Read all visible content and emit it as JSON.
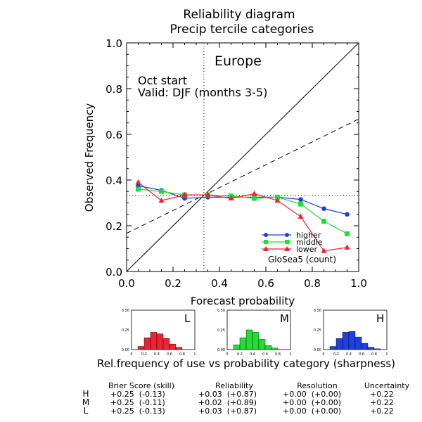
{
  "title": "Reliability diagram",
  "subtitle": "Precip tercile categories",
  "region": "Europe",
  "start_label": "Oct start",
  "valid_label": "Valid: DJF (months 3-5)",
  "model_label": "GloSea5 (count)",
  "colors": {
    "higher": "#1f3fe0",
    "middle": "#22dd33",
    "lower": "#ee2233",
    "axis": "#000000"
  },
  "chart_data": {
    "type": "line",
    "xlabel": "Forecast probability",
    "ylabel": "Observed Frequency",
    "xlim": [
      0,
      1
    ],
    "ylim": [
      0,
      1
    ],
    "xticks": [
      "0.0",
      "0.2",
      "0.4",
      "0.6",
      "0.8",
      "1.0"
    ],
    "yticks": [
      "0.0",
      "0.2",
      "0.4",
      "0.6",
      "0.8",
      "1.0"
    ],
    "climatology": 0.333,
    "no_skill_line": {
      "x": [
        0.0,
        1.0
      ],
      "y": [
        0.167,
        0.667
      ]
    },
    "x": [
      0.05,
      0.15,
      0.25,
      0.35,
      0.45,
      0.55,
      0.65,
      0.75,
      0.85,
      0.95
    ],
    "series": [
      {
        "name": "higher",
        "marker": "circle",
        "values": [
          0.375,
          0.355,
          0.32,
          0.325,
          0.325,
          0.325,
          0.325,
          0.315,
          0.275,
          0.25
        ]
      },
      {
        "name": "middle",
        "marker": "square",
        "values": [
          0.36,
          0.35,
          0.335,
          0.335,
          0.33,
          0.32,
          0.325,
          0.295,
          0.22,
          0.165
        ]
      },
      {
        "name": "lower",
        "marker": "triangle",
        "values": [
          0.39,
          0.31,
          0.335,
          0.335,
          0.32,
          0.34,
          0.31,
          0.24,
          0.09,
          0.105
        ]
      }
    ]
  },
  "sharpness": {
    "caption": "Rel.frequency of use vs probability category (sharpness)",
    "yticks": [
      "0.00",
      "0.25",
      "0.50"
    ],
    "xticks": [
      "0",
      "0.2",
      "0.4",
      "0.6",
      "0.8",
      "1"
    ],
    "panels": [
      {
        "label": "L",
        "color": "#ee2233",
        "values": [
          0.0,
          0.04,
          0.15,
          0.22,
          0.2,
          0.14,
          0.07,
          0.03,
          0.0,
          0.0
        ]
      },
      {
        "label": "M",
        "color": "#22dd33",
        "values": [
          0.0,
          0.06,
          0.15,
          0.25,
          0.22,
          0.13,
          0.05,
          0.02,
          0.0,
          0.0
        ]
      },
      {
        "label": "H",
        "color": "#1f3fe0",
        "values": [
          0.0,
          0.04,
          0.14,
          0.22,
          0.23,
          0.16,
          0.08,
          0.03,
          0.01,
          0.0
        ]
      }
    ]
  },
  "scores": {
    "headers": [
      "Brier Score (skill)",
      "Reliability",
      "Resolution",
      "Uncertainty"
    ],
    "rows": [
      {
        "label": "H",
        "color": "#1f3fe0",
        "brier": "+0.25  (-0.13)",
        "reliability": "+0.03  (+0.87)",
        "resolution": "+0.00  (+0.00)",
        "uncertainty": "+0.22"
      },
      {
        "label": "M",
        "color": "#22dd33",
        "brier": "+0.25  (-0.11)",
        "reliability": "+0.02  (+0.89)",
        "resolution": "+0.00  (+0.00)",
        "uncertainty": "+0.22"
      },
      {
        "label": "L",
        "color": "#ee2233",
        "brier": "+0.25  (-0.13)",
        "reliability": "+0.03  (+0.87)",
        "resolution": "+0.00  (+0.00)",
        "uncertainty": "+0.22"
      }
    ]
  }
}
